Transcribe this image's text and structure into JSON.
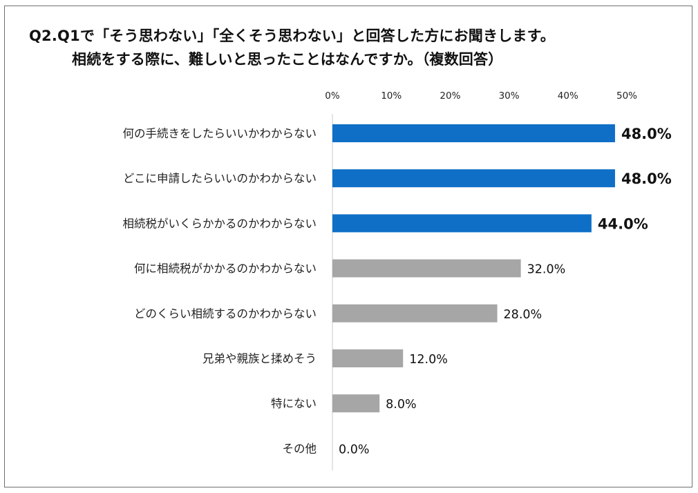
{
  "title": {
    "line1": "Q2.Q1で「そう思わない」「全くそう思わない」と回答した方にお聞きします。",
    "line2": "相続をする際に、難しいと思ったことはなんですか。（複数回答）"
  },
  "chart_data": {
    "type": "bar",
    "orientation": "horizontal",
    "categories": [
      "何の手続きをしたらいいかわからない",
      "どこに申請したらいいのかわからない",
      "相続税がいくらかかるのかわからない",
      "何に相続税がかかるのかわからない",
      "どのくらい相続するのかわからない",
      "兄弟や親族と揉めそう",
      "特にない",
      "その他"
    ],
    "values": [
      48.0,
      48.0,
      44.0,
      32.0,
      28.0,
      12.0,
      8.0,
      0.0
    ],
    "value_labels": [
      "48.0%",
      "48.0%",
      "44.0%",
      "32.0%",
      "28.0%",
      "12.0%",
      "8.0%",
      "0.0%"
    ],
    "highlight": [
      true,
      true,
      true,
      false,
      false,
      false,
      false,
      false
    ],
    "xlim": [
      0,
      50
    ],
    "x_ticks": [
      "0%",
      "10%",
      "20%",
      "30%",
      "40%",
      "50%"
    ],
    "x_tick_values": [
      0,
      10,
      20,
      30,
      40,
      50
    ],
    "axis_position": "top",
    "grid": false,
    "colors": {
      "highlight": "#0F6FC6",
      "normal": "#A6A6A6",
      "axis": "#c8c8c8"
    }
  }
}
